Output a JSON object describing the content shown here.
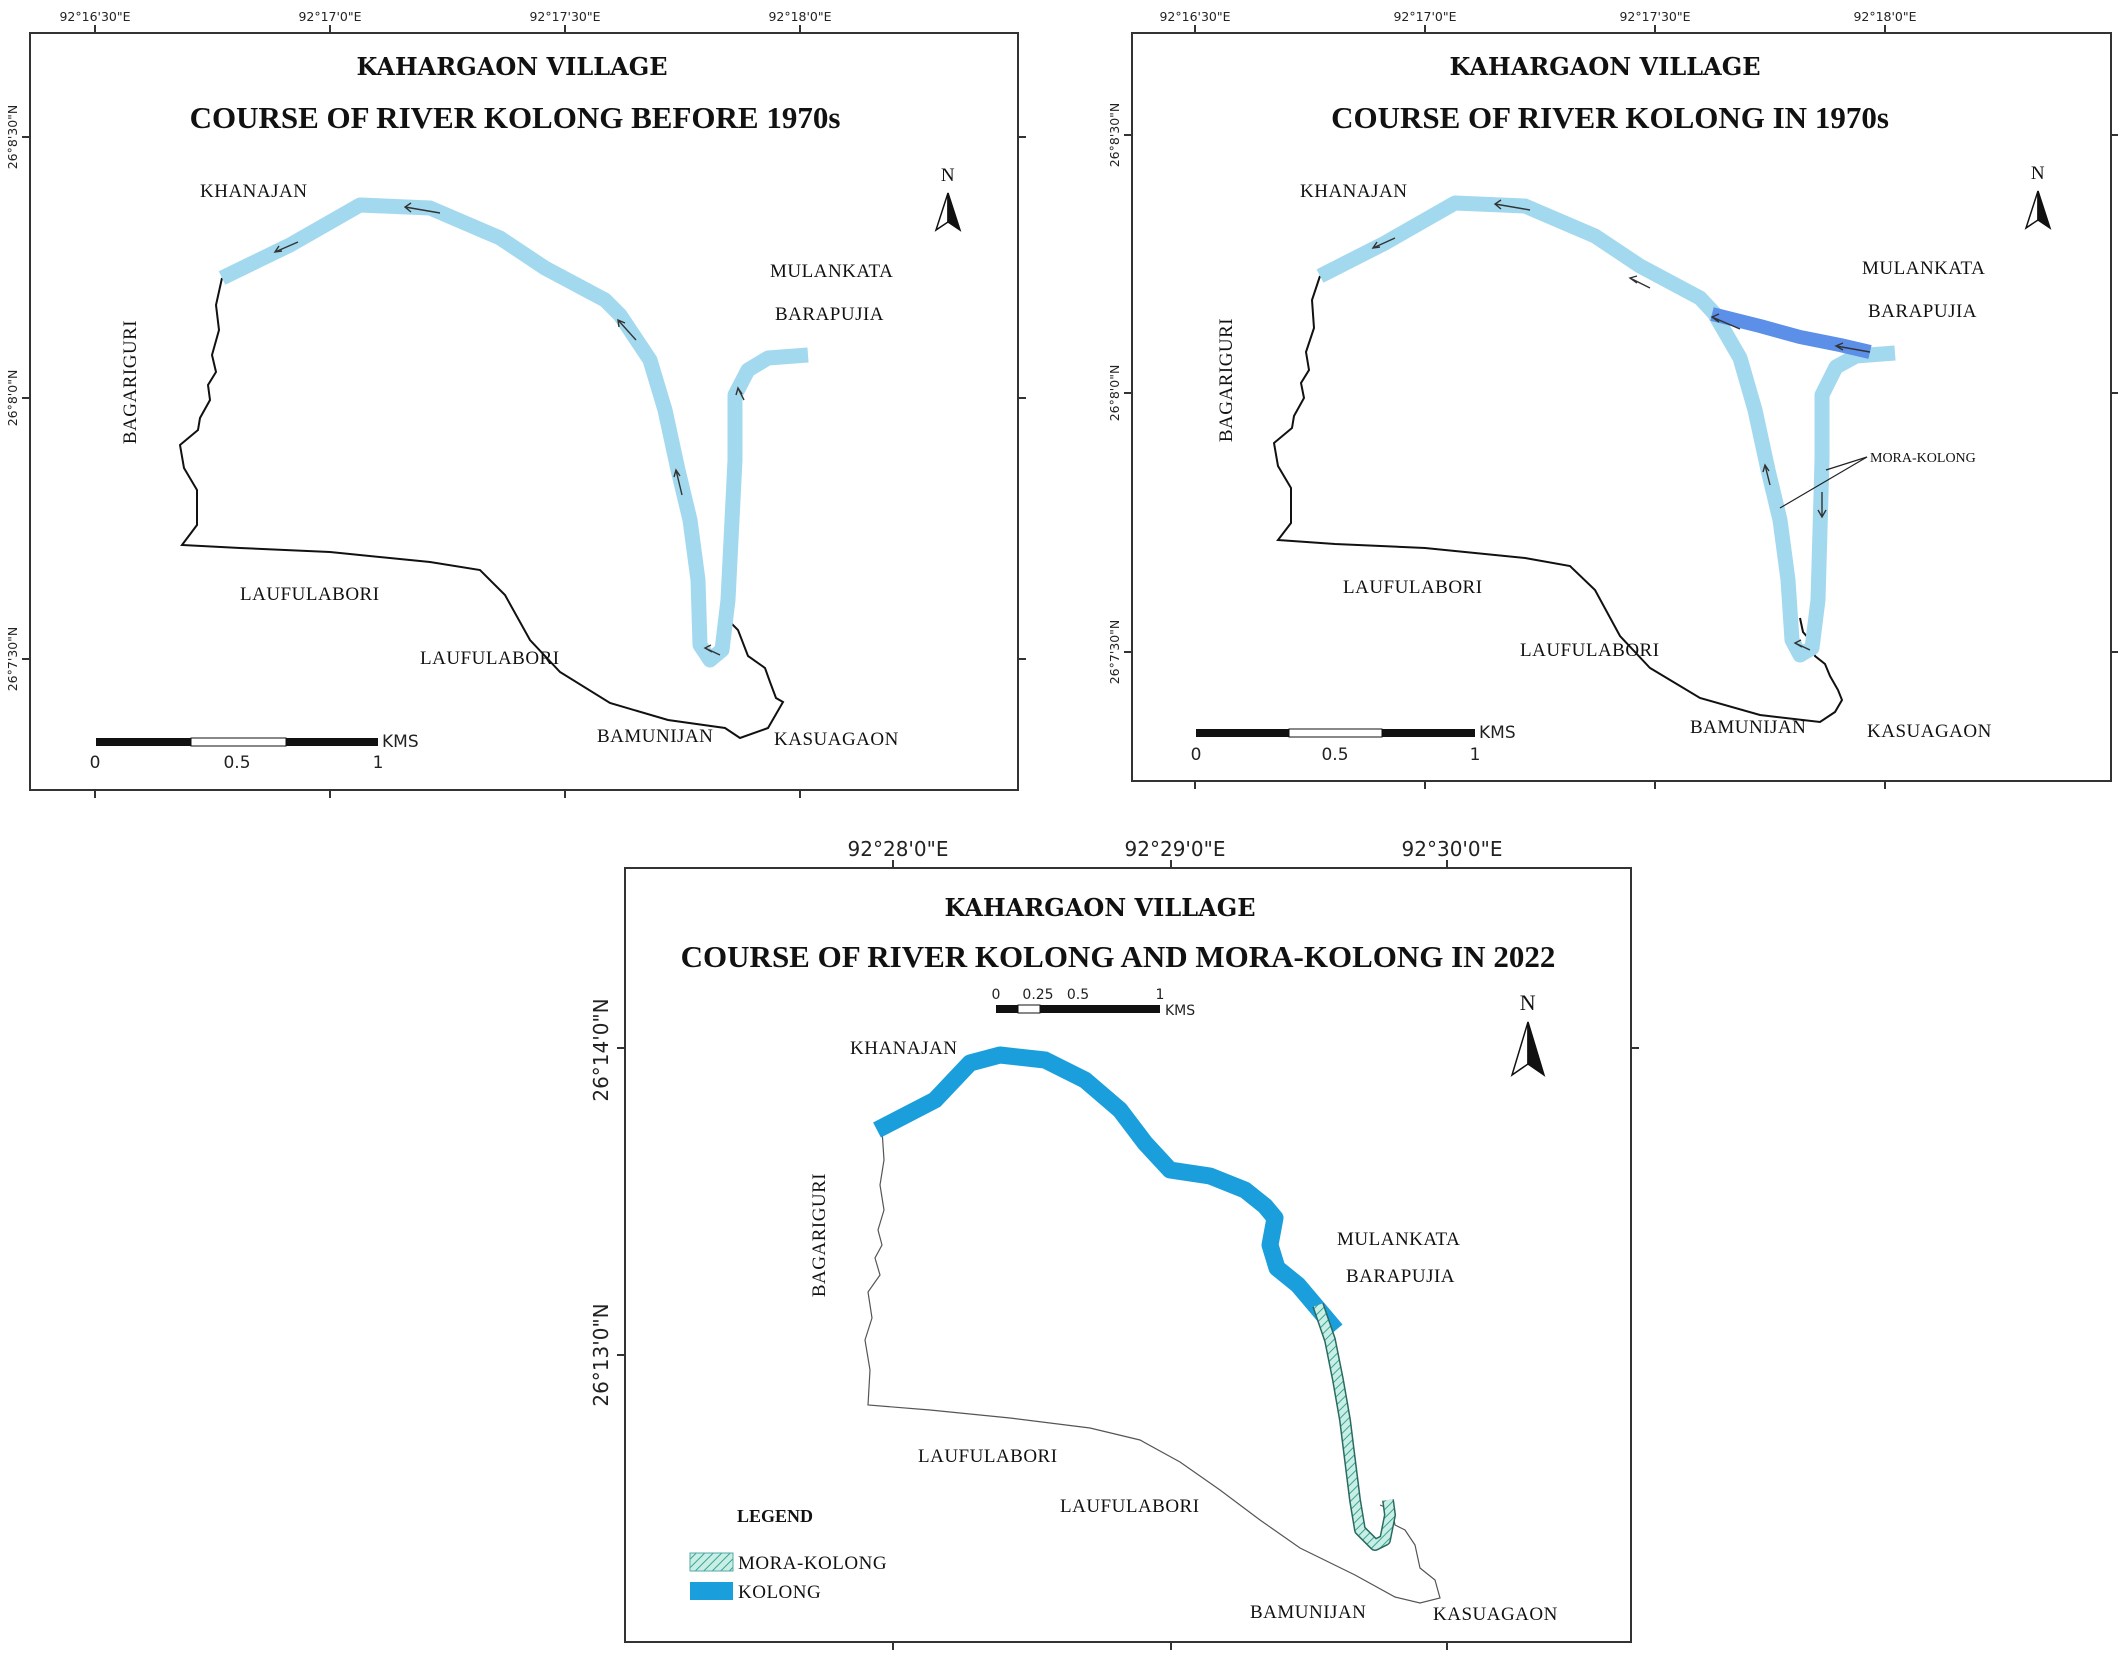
{
  "maps": [
    {
      "id": "before-1970s",
      "subtitle": "KAHARGAON VILLAGE",
      "title": "COURSE OF RIVER KOLONG BEFORE 1970s",
      "lon_labels": [
        "92°16'30\"E",
        "92°17'0\"E",
        "92°17'30\"E",
        "92°18'0\"E"
      ],
      "lat_labels": [
        "26°8'30\"N",
        "26°8'0\"N",
        "26°7'30\"N"
      ],
      "places": [
        "KHANAJAN",
        "MULANKATA",
        "BARAPUJIA",
        "BAGARIGURI",
        "LAUFULABORI",
        "LAUFULABORI",
        "BAMUNIJAN",
        "KASUAGAON"
      ],
      "north": "N",
      "scale": {
        "ticks": [
          "0",
          "0.5",
          "1"
        ],
        "unit": "KMS"
      }
    },
    {
      "id": "in-1970s",
      "subtitle": "KAHARGAON VILLAGE",
      "title": "COURSE OF RIVER KOLONG IN 1970s",
      "lon_labels": [
        "92°16'30\"E",
        "92°17'0\"E",
        "92°17'30\"E",
        "92°18'0\"E"
      ],
      "lat_labels": [
        "26°8'30\"N",
        "26°8'0\"N",
        "26°7'30\"N"
      ],
      "places": [
        "KHANAJAN",
        "MULANKATA",
        "BARAPUJIA",
        "BAGARIGURI",
        "LAUFULABORI",
        "LAUFULABORI",
        "BAMUNIJAN",
        "KASUAGAON"
      ],
      "annotation": "MORA-KOLONG",
      "north": "N",
      "scale": {
        "ticks": [
          "0",
          "0.5",
          "1"
        ],
        "unit": "KMS"
      }
    },
    {
      "id": "in-2022",
      "subtitle": "KAHARGAON VILLAGE",
      "title": "COURSE OF RIVER KOLONG AND MORA-KOLONG IN 2022",
      "lon_labels": [
        "92°28'0\"E",
        "92°29'0\"E",
        "92°30'0\"E"
      ],
      "lat_labels": [
        "26°14'0\"N",
        "26°13'0\"N"
      ],
      "places": [
        "KHANAJAN",
        "MULANKATA",
        "BARAPUJIA",
        "BAGARIGURI",
        "LAUFULABORI",
        "LAUFULABORI",
        "BAMUNIJAN",
        "KASUAGAON"
      ],
      "north": "N",
      "scale": {
        "ticks": [
          "0",
          "0.25",
          "0.5",
          "1"
        ],
        "unit": "KMS"
      },
      "legend": {
        "title": "LEGEND",
        "items": [
          {
            "label": "MORA-KOLONG",
            "color": "#8fd3c7"
          },
          {
            "label": "KOLONG",
            "color": "#1a9fdc"
          }
        ]
      }
    }
  ],
  "colors": {
    "river_old": "#a3d9ee",
    "river_cut": "#5b8fe8",
    "river_2022": "#1a9fdc",
    "mora_kolong": "#8fd3c7"
  }
}
